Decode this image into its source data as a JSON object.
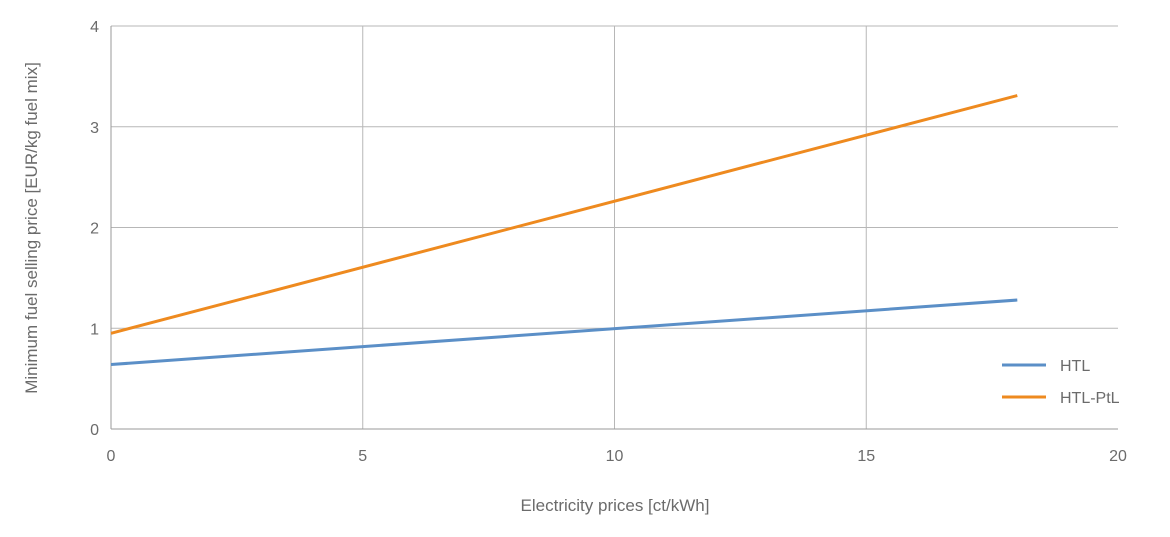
{
  "chart_data": {
    "type": "line",
    "title": "",
    "xlabel": "Electricity prices [ct/kWh]",
    "ylabel": "Minimum fuel selling price [EUR/kg fuel mix]",
    "xlim": [
      0,
      20
    ],
    "ylim": [
      0,
      4
    ],
    "xticks": [
      "0",
      "5",
      "10",
      "15",
      "20"
    ],
    "yticks": [
      "0",
      "1",
      "2",
      "3",
      "4"
    ],
    "grid": true,
    "legend_position": "bottom-right",
    "series": [
      {
        "name": "HTL",
        "color": "#5b8fc7",
        "x": [
          0,
          18
        ],
        "y": [
          0.64,
          1.28
        ]
      },
      {
        "name": "HTL-PtL",
        "color": "#ee8a1f",
        "x": [
          0,
          18
        ],
        "y": [
          0.95,
          3.31
        ]
      }
    ]
  }
}
